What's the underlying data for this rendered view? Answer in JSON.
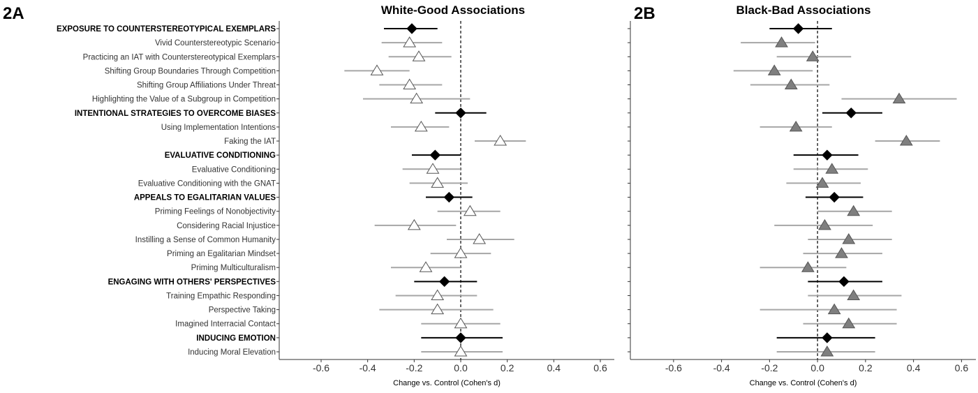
{
  "chart_data": [
    {
      "type": "forest",
      "panel_label": "2A",
      "title": "White-Good Associations",
      "xlabel": "Change vs. Control (Cohen's d)",
      "xlim": [
        -0.78,
        0.66
      ],
      "xticks": [
        -0.6,
        -0.4,
        -0.2,
        0.0,
        0.2,
        0.4,
        0.6
      ],
      "xtick_labels": [
        "-0.6",
        "-0.4",
        "-0.2",
        "0.0",
        "0.2",
        "0.4",
        "0.6"
      ],
      "reference_line": 0,
      "marker_colors": {
        "category": "#000000",
        "item": "#ffffff"
      },
      "interval_colors": {
        "category": "#000000",
        "item": "#a6a6a6"
      },
      "rows": [
        {
          "label": "EXPOSURE TO COUNTERSTEREOTYPICAL EXEMPLARS",
          "kind": "category",
          "estimate": -0.21,
          "lo": -0.33,
          "hi": -0.1
        },
        {
          "label": "Vivid Counterstereotypic Scenario",
          "kind": "item",
          "estimate": -0.22,
          "lo": -0.34,
          "hi": -0.08
        },
        {
          "label": "Practicing an IAT with Counterstereotypical Exemplars",
          "kind": "item",
          "estimate": -0.18,
          "lo": -0.31,
          "hi": -0.04
        },
        {
          "label": "Shifting Group Boundaries Through Competition",
          "kind": "item",
          "estimate": -0.36,
          "lo": -0.5,
          "hi": -0.22
        },
        {
          "label": "Shifting Group Affiliations Under Threat",
          "kind": "item",
          "estimate": -0.22,
          "lo": -0.35,
          "hi": -0.08
        },
        {
          "label": "Highlighting the Value of a Subgroup in Competition",
          "kind": "item",
          "estimate": -0.19,
          "lo": -0.42,
          "hi": 0.04
        },
        {
          "label": "INTENTIONAL STRATEGIES TO OVERCOME BIASES",
          "kind": "category",
          "estimate": 0.0,
          "lo": -0.11,
          "hi": 0.11
        },
        {
          "label": "Using Implementation Intentions",
          "kind": "item",
          "estimate": -0.17,
          "lo": -0.3,
          "hi": -0.05
        },
        {
          "label": "Faking the IAT",
          "kind": "item",
          "estimate": 0.17,
          "lo": 0.06,
          "hi": 0.28
        },
        {
          "label": "EVALUATIVE CONDITIONING",
          "kind": "category",
          "estimate": -0.11,
          "lo": -0.21,
          "hi": 0.0
        },
        {
          "label": "Evaluative Conditioning",
          "kind": "item",
          "estimate": -0.12,
          "lo": -0.25,
          "hi": 0.0
        },
        {
          "label": "Evaluative Conditioning with the GNAT",
          "kind": "item",
          "estimate": -0.1,
          "lo": -0.22,
          "hi": 0.03
        },
        {
          "label": "APPEALS TO EGALITARIAN VALUES",
          "kind": "category",
          "estimate": -0.05,
          "lo": -0.15,
          "hi": 0.05
        },
        {
          "label": "Priming Feelings of Nonobjectivity",
          "kind": "item",
          "estimate": 0.04,
          "lo": -0.1,
          "hi": 0.17
        },
        {
          "label": "Considering Racial Injustice",
          "kind": "item",
          "estimate": -0.2,
          "lo": -0.37,
          "hi": -0.02
        },
        {
          "label": "Instilling a Sense of Common Humanity",
          "kind": "item",
          "estimate": 0.08,
          "lo": -0.06,
          "hi": 0.23
        },
        {
          "label": "Priming an Egalitarian Mindset",
          "kind": "item",
          "estimate": 0.0,
          "lo": -0.13,
          "hi": 0.13
        },
        {
          "label": "Priming Multiculturalism",
          "kind": "item",
          "estimate": -0.15,
          "lo": -0.3,
          "hi": 0.0
        },
        {
          "label": "ENGAGING WITH OTHERS' PERSPECTIVES",
          "kind": "category",
          "estimate": -0.07,
          "lo": -0.2,
          "hi": 0.07
        },
        {
          "label": "Training Empathic Responding",
          "kind": "item",
          "estimate": -0.1,
          "lo": -0.28,
          "hi": 0.07
        },
        {
          "label": "Perspective Taking",
          "kind": "item",
          "estimate": -0.1,
          "lo": -0.35,
          "hi": 0.14
        },
        {
          "label": "Imagined Interracial Contact",
          "kind": "item",
          "estimate": 0.0,
          "lo": -0.17,
          "hi": 0.17
        },
        {
          "label": "INDUCING EMOTION",
          "kind": "category",
          "estimate": 0.0,
          "lo": -0.17,
          "hi": 0.18
        },
        {
          "label": "Inducing Moral Elevation",
          "kind": "item",
          "estimate": 0.0,
          "lo": -0.17,
          "hi": 0.18
        }
      ]
    },
    {
      "type": "forest",
      "panel_label": "2B",
      "title": "Black-Bad Associations",
      "xlabel": "Change vs. Control (Cohen's d)",
      "xlim": [
        -0.78,
        0.66
      ],
      "xticks": [
        -0.6,
        -0.4,
        -0.2,
        0.0,
        0.2,
        0.4,
        0.6
      ],
      "xtick_labels": [
        "-0.6",
        "-0.4",
        "-0.2",
        "0.0",
        "0.2",
        "0.4",
        "0.6"
      ],
      "reference_line": 0,
      "marker_colors": {
        "category": "#000000",
        "item": "#7f7f7f"
      },
      "interval_colors": {
        "category": "#000000",
        "item": "#a6a6a6"
      },
      "rows": [
        {
          "label": "EXPOSURE TO COUNTERSTEREOTYPICAL EXEMPLARS",
          "kind": "category",
          "estimate": -0.08,
          "lo": -0.2,
          "hi": 0.06
        },
        {
          "label": "Vivid Counterstereotypic Scenario",
          "kind": "item",
          "estimate": -0.15,
          "lo": -0.32,
          "hi": -0.01
        },
        {
          "label": "Practicing an IAT with Counterstereotypical Exemplars",
          "kind": "item",
          "estimate": -0.02,
          "lo": -0.17,
          "hi": 0.14
        },
        {
          "label": "Shifting Group Boundaries Through Competition",
          "kind": "item",
          "estimate": -0.18,
          "lo": -0.35,
          "hi": -0.02
        },
        {
          "label": "Shifting Group Affiliations Under Threat",
          "kind": "item",
          "estimate": -0.11,
          "lo": -0.28,
          "hi": 0.05
        },
        {
          "label": "Highlighting the Value of a Subgroup in Competition",
          "kind": "item",
          "estimate": 0.34,
          "lo": 0.1,
          "hi": 0.58
        },
        {
          "label": "INTENTIONAL STRATEGIES TO OVERCOME BIASES",
          "kind": "category",
          "estimate": 0.14,
          "lo": 0.02,
          "hi": 0.27
        },
        {
          "label": "Using Implementation Intentions",
          "kind": "item",
          "estimate": -0.09,
          "lo": -0.24,
          "hi": 0.06
        },
        {
          "label": "Faking the IAT",
          "kind": "item",
          "estimate": 0.37,
          "lo": 0.24,
          "hi": 0.51
        },
        {
          "label": "EVALUATIVE CONDITIONING",
          "kind": "category",
          "estimate": 0.04,
          "lo": -0.1,
          "hi": 0.17
        },
        {
          "label": "Evaluative Conditioning",
          "kind": "item",
          "estimate": 0.06,
          "lo": -0.1,
          "hi": 0.21
        },
        {
          "label": "Evaluative Conditioning with the GNAT",
          "kind": "item",
          "estimate": 0.02,
          "lo": -0.13,
          "hi": 0.18
        },
        {
          "label": "APPEALS TO EGALITARIAN VALUES",
          "kind": "category",
          "estimate": 0.07,
          "lo": -0.05,
          "hi": 0.19
        },
        {
          "label": "Priming Feelings of Nonobjectivity",
          "kind": "item",
          "estimate": 0.15,
          "lo": 0.0,
          "hi": 0.31
        },
        {
          "label": "Considering Racial Injustice",
          "kind": "item",
          "estimate": 0.03,
          "lo": -0.18,
          "hi": 0.23
        },
        {
          "label": "Instilling a Sense of Common Humanity",
          "kind": "item",
          "estimate": 0.13,
          "lo": -0.04,
          "hi": 0.31
        },
        {
          "label": "Priming an Egalitarian Mindset",
          "kind": "item",
          "estimate": 0.1,
          "lo": -0.06,
          "hi": 0.27
        },
        {
          "label": "Priming Multiculturalism",
          "kind": "item",
          "estimate": -0.04,
          "lo": -0.24,
          "hi": 0.12
        },
        {
          "label": "ENGAGING WITH OTHERS' PERSPECTIVES",
          "kind": "category",
          "estimate": 0.11,
          "lo": -0.04,
          "hi": 0.27
        },
        {
          "label": "Training Empathic Responding",
          "kind": "item",
          "estimate": 0.15,
          "lo": -0.04,
          "hi": 0.35
        },
        {
          "label": "Perspective Taking",
          "kind": "item",
          "estimate": 0.07,
          "lo": -0.24,
          "hi": 0.33
        },
        {
          "label": "Imagined Interracial Contact",
          "kind": "item",
          "estimate": 0.13,
          "lo": -0.06,
          "hi": 0.33
        },
        {
          "label": "INDUCING EMOTION",
          "kind": "category",
          "estimate": 0.04,
          "lo": -0.17,
          "hi": 0.24
        },
        {
          "label": "Inducing Moral Elevation",
          "kind": "item",
          "estimate": 0.04,
          "lo": -0.17,
          "hi": 0.24
        }
      ]
    }
  ]
}
